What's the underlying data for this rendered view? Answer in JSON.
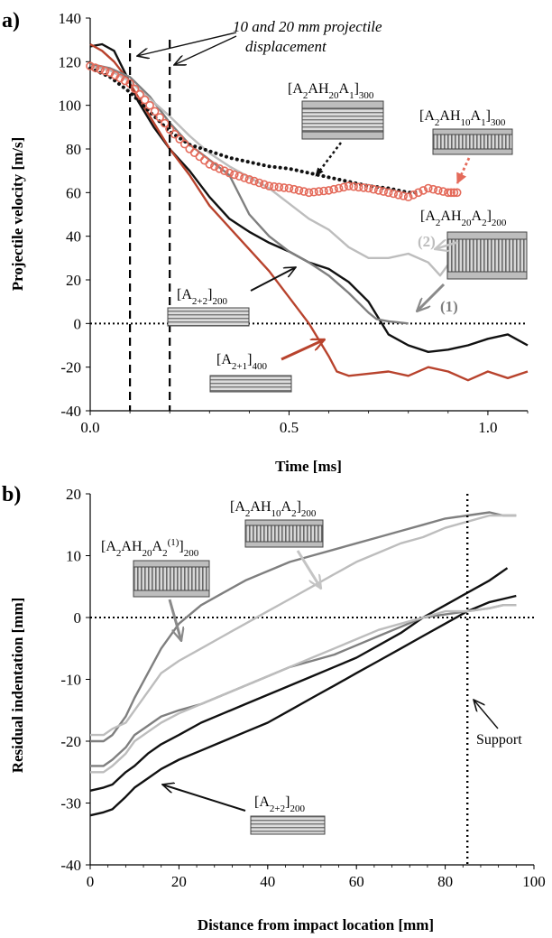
{
  "colors": {
    "black": "#111111",
    "red": "#b8432d",
    "dark_gray": "#7f7f7f",
    "light_gray": "#bdbdbd",
    "red_marker": "#e46a5a"
  },
  "chart_data": [
    {
      "panel_label": "a)",
      "type": "line",
      "xlabel": "Time [ms]",
      "ylabel": "Projectile velocity [m/s]",
      "xlim": [
        0,
        1.1
      ],
      "ylim": [
        -40,
        140
      ],
      "xticks": [
        0,
        0.5,
        1.0
      ],
      "xtick_labels": [
        "0.0",
        "0.5",
        "1.0"
      ],
      "yticks": [
        -40,
        -20,
        0,
        20,
        40,
        60,
        80,
        100,
        120,
        140
      ],
      "grid": false,
      "series": [
        {
          "color": "#111111",
          "style": "solid",
          "x": [
            0,
            0.03,
            0.06,
            0.09,
            0.12,
            0.16,
            0.2,
            0.25,
            0.3,
            0.35,
            0.4,
            0.45,
            0.5,
            0.55,
            0.6,
            0.65,
            0.7,
            0.75,
            0.8,
            0.85,
            0.9,
            0.95,
            1.0,
            1.05,
            1.1
          ],
          "y": [
            127,
            128,
            125,
            114,
            102,
            90,
            80,
            70,
            58,
            48,
            42,
            37,
            33,
            28,
            25,
            19,
            10,
            -5,
            -10,
            -13,
            -12,
            -10,
            -7,
            -5,
            -10
          ]
        },
        {
          "color": "#b8432d",
          "style": "solid",
          "x": [
            0,
            0.03,
            0.06,
            0.09,
            0.12,
            0.16,
            0.2,
            0.25,
            0.3,
            0.35,
            0.4,
            0.45,
            0.5,
            0.55,
            0.6,
            0.62,
            0.65,
            0.7,
            0.75,
            0.8,
            0.85,
            0.9,
            0.95,
            1.0,
            1.05,
            1.1
          ],
          "y": [
            128,
            125,
            120,
            113,
            104,
            92,
            80,
            68,
            54,
            44,
            34,
            24,
            12,
            0,
            -15,
            -22,
            -24,
            -23,
            -22,
            -24,
            -20,
            -22,
            -26,
            -22,
            -25,
            -22
          ]
        },
        {
          "color": "#7f7f7f",
          "style": "solid",
          "x": [
            0,
            0.05,
            0.1,
            0.15,
            0.2,
            0.25,
            0.3,
            0.35,
            0.4,
            0.45,
            0.5,
            0.55,
            0.6,
            0.65,
            0.7,
            0.72,
            0.75,
            0.8
          ],
          "y": [
            119,
            117,
            113,
            104,
            92,
            82,
            75,
            68,
            50,
            40,
            33,
            28,
            22,
            14,
            5,
            2,
            1,
            0
          ]
        },
        {
          "color": "#bdbdbd",
          "style": "solid",
          "x": [
            0,
            0.05,
            0.1,
            0.15,
            0.2,
            0.25,
            0.3,
            0.35,
            0.4,
            0.45,
            0.5,
            0.55,
            0.6,
            0.65,
            0.7,
            0.75,
            0.8,
            0.85,
            0.88,
            0.9,
            0.95
          ],
          "y": [
            118,
            116,
            111,
            103,
            95,
            86,
            78,
            72,
            67,
            62,
            55,
            48,
            43,
            35,
            30,
            30,
            32,
            28,
            22,
            27,
            30
          ]
        },
        {
          "color": "#111111",
          "style": "dotted",
          "x": [
            0,
            0.05,
            0.1,
            0.15,
            0.2,
            0.25,
            0.3,
            0.35,
            0.4,
            0.45,
            0.5,
            0.55,
            0.6,
            0.65,
            0.7,
            0.75,
            0.8,
            0.83
          ],
          "y": [
            117,
            113,
            106,
            97,
            88,
            82,
            79,
            76,
            74,
            72,
            71,
            69,
            67,
            65,
            63,
            62,
            60,
            60
          ]
        },
        {
          "color": "#e46a5a",
          "style": "circles",
          "x": [
            0,
            0.05,
            0.1,
            0.15,
            0.2,
            0.25,
            0.3,
            0.35,
            0.4,
            0.45,
            0.5,
            0.55,
            0.6,
            0.65,
            0.7,
            0.75,
            0.8,
            0.85,
            0.9,
            0.93
          ],
          "y": [
            118,
            115,
            110,
            100,
            89,
            80,
            73,
            69,
            66,
            63,
            62,
            60,
            61,
            63,
            62,
            60,
            58,
            62,
            60,
            60
          ]
        }
      ],
      "annotations": {
        "projectile_note": [
          "10 and 20 mm projectile",
          "displacement"
        ],
        "vlines_x": [
          0.1,
          0.2
        ],
        "labels": [
          {
            "base": "[A",
            "parts": [
              [
                "2",
                "sub"
              ],
              [
                "AH",
                ""
              ],
              [
                "20",
                "sub"
              ],
              [
                "A",
                ""
              ],
              [
                "1",
                "sub"
              ],
              [
                "]",
                ""
              ],
              [
                "300",
                "sub"
              ]
            ]
          },
          {
            "base": "[A",
            "parts": [
              [
                "2",
                "sub"
              ],
              [
                "AH",
                ""
              ],
              [
                "10",
                "sub"
              ],
              [
                "A",
                ""
              ],
              [
                "1",
                "sub"
              ],
              [
                "]",
                ""
              ],
              [
                "300",
                "sub"
              ]
            ]
          },
          {
            "base": "[A",
            "parts": [
              [
                "2",
                "sub"
              ],
              [
                "AH",
                ""
              ],
              [
                "20",
                "sub"
              ],
              [
                "A",
                ""
              ],
              [
                "2",
                "sub"
              ],
              [
                "]",
                ""
              ],
              [
                "200",
                "sub"
              ]
            ]
          },
          {
            "base": "[A",
            "parts": [
              [
                "2+2",
                "sub"
              ],
              [
                "]",
                ""
              ],
              [
                "200",
                "sub"
              ]
            ]
          },
          {
            "base": "[A",
            "parts": [
              [
                "2+1",
                "sub"
              ],
              [
                "]",
                ""
              ],
              [
                "400",
                "sub"
              ]
            ]
          }
        ],
        "curve_markers": [
          "(2)",
          "(1)"
        ]
      }
    },
    {
      "panel_label": "b)",
      "type": "line",
      "xlabel": "Distance from impact location [mm]",
      "ylabel": "Residual indentation [mm]",
      "xlim": [
        0,
        100
      ],
      "ylim": [
        -40,
        20
      ],
      "xticks": [
        0,
        20,
        40,
        60,
        80,
        100
      ],
      "yticks": [
        -40,
        -30,
        -20,
        -10,
        0,
        10,
        20
      ],
      "grid": false,
      "series": [
        {
          "color": "#7f7f7f",
          "style": "solid",
          "x": [
            0,
            3,
            5,
            8,
            10,
            13,
            16,
            20,
            25,
            30,
            35,
            40,
            45,
            50,
            55,
            60,
            65,
            70,
            75,
            80,
            85,
            90,
            93,
            96
          ],
          "y": [
            -20,
            -20,
            -19,
            -16,
            -13,
            -9,
            -5,
            -1,
            2,
            4,
            6,
            7.5,
            9,
            10,
            11,
            12,
            13,
            14,
            15,
            16,
            16.5,
            17,
            16.5,
            16.5
          ]
        },
        {
          "color": "#bdbdbd",
          "style": "solid",
          "x": [
            0,
            3,
            5,
            8,
            10,
            13,
            16,
            20,
            25,
            30,
            35,
            40,
            45,
            50,
            55,
            60,
            65,
            70,
            75,
            80,
            85,
            90,
            93,
            96
          ],
          "y": [
            -19,
            -19,
            -18,
            -17,
            -15,
            -12,
            -9,
            -7,
            -5,
            -3,
            -1,
            1,
            3,
            5,
            7,
            9,
            10.5,
            12,
            13,
            14.5,
            15.5,
            16.5,
            16.5,
            16.5
          ]
        },
        {
          "color": "#111111",
          "style": "solid",
          "x": [
            0,
            3,
            5,
            8,
            10,
            13,
            16,
            20,
            25,
            30,
            35,
            40,
            45,
            50,
            55,
            60,
            65,
            70,
            75,
            80,
            85,
            90,
            94
          ],
          "y": [
            -28,
            -27.5,
            -27,
            -25,
            -24,
            -22,
            -20.5,
            -19,
            -17,
            -15.5,
            -14,
            -12.5,
            -11,
            -9.5,
            -8,
            -6.5,
            -4.5,
            -2.5,
            0,
            2,
            4,
            6,
            8
          ]
        },
        {
          "color": "#111111",
          "style": "solid",
          "x": [
            0,
            3,
            5,
            8,
            10,
            13,
            16,
            20,
            25,
            30,
            35,
            40,
            45,
            50,
            55,
            60,
            65,
            70,
            75,
            80,
            85,
            90,
            93,
            96
          ],
          "y": [
            -32,
            -31.5,
            -31,
            -29,
            -27.5,
            -26,
            -24.5,
            -23,
            -21.5,
            -20,
            -18.5,
            -17,
            -15,
            -13,
            -11,
            -9,
            -7,
            -5,
            -3,
            -1,
            1,
            2.5,
            3,
            3.5
          ]
        },
        {
          "color": "#7f7f7f",
          "style": "solid",
          "x": [
            0,
            3,
            5,
            8,
            10,
            13,
            16,
            20,
            25,
            30,
            35,
            40,
            45,
            50,
            55,
            60,
            65,
            70,
            75,
            80,
            85,
            90,
            93,
            96
          ],
          "y": [
            -24,
            -24,
            -23,
            -21,
            -19,
            -17.5,
            -16,
            -15,
            -14,
            -12.5,
            -11,
            -9.5,
            -8,
            -7,
            -6,
            -4.5,
            -3,
            -1.5,
            0,
            0.5,
            1,
            1.5,
            2,
            2
          ]
        },
        {
          "color": "#bdbdbd",
          "style": "solid",
          "x": [
            0,
            3,
            5,
            8,
            10,
            13,
            16,
            20,
            25,
            30,
            35,
            40,
            45,
            50,
            55,
            60,
            65,
            70,
            75,
            80,
            85,
            90,
            93,
            96
          ],
          "y": [
            -25,
            -25,
            -24,
            -22,
            -20,
            -18.5,
            -17,
            -15.5,
            -14,
            -12.5,
            -11,
            -9.5,
            -8,
            -6.5,
            -5,
            -3.5,
            -2,
            -1,
            0,
            1,
            1,
            1.5,
            2,
            2
          ]
        }
      ],
      "annotations": {
        "support_label": "Support",
        "support_x": 85,
        "labels": [
          {
            "base": "[A",
            "parts": [
              [
                "2",
                "sub"
              ],
              [
                "AH",
                ""
              ],
              [
                "10",
                "sub"
              ],
              [
                "A",
                ""
              ],
              [
                "2",
                "sub"
              ],
              [
                "]",
                ""
              ],
              [
                "200",
                "sub"
              ]
            ]
          },
          {
            "base": "[A",
            "parts": [
              [
                "2",
                "sub"
              ],
              [
                "AH",
                ""
              ],
              [
                "20",
                "sub"
              ],
              [
                "A",
                ""
              ],
              [
                "2",
                "sub"
              ],
              [
                "(1)",
                "sup"
              ],
              [
                "]",
                ""
              ],
              [
                "200",
                "sub"
              ]
            ]
          },
          {
            "base": "[A",
            "parts": [
              [
                "2+2",
                "sub"
              ],
              [
                "]",
                ""
              ],
              [
                "200",
                "sub"
              ]
            ]
          }
        ]
      }
    }
  ]
}
